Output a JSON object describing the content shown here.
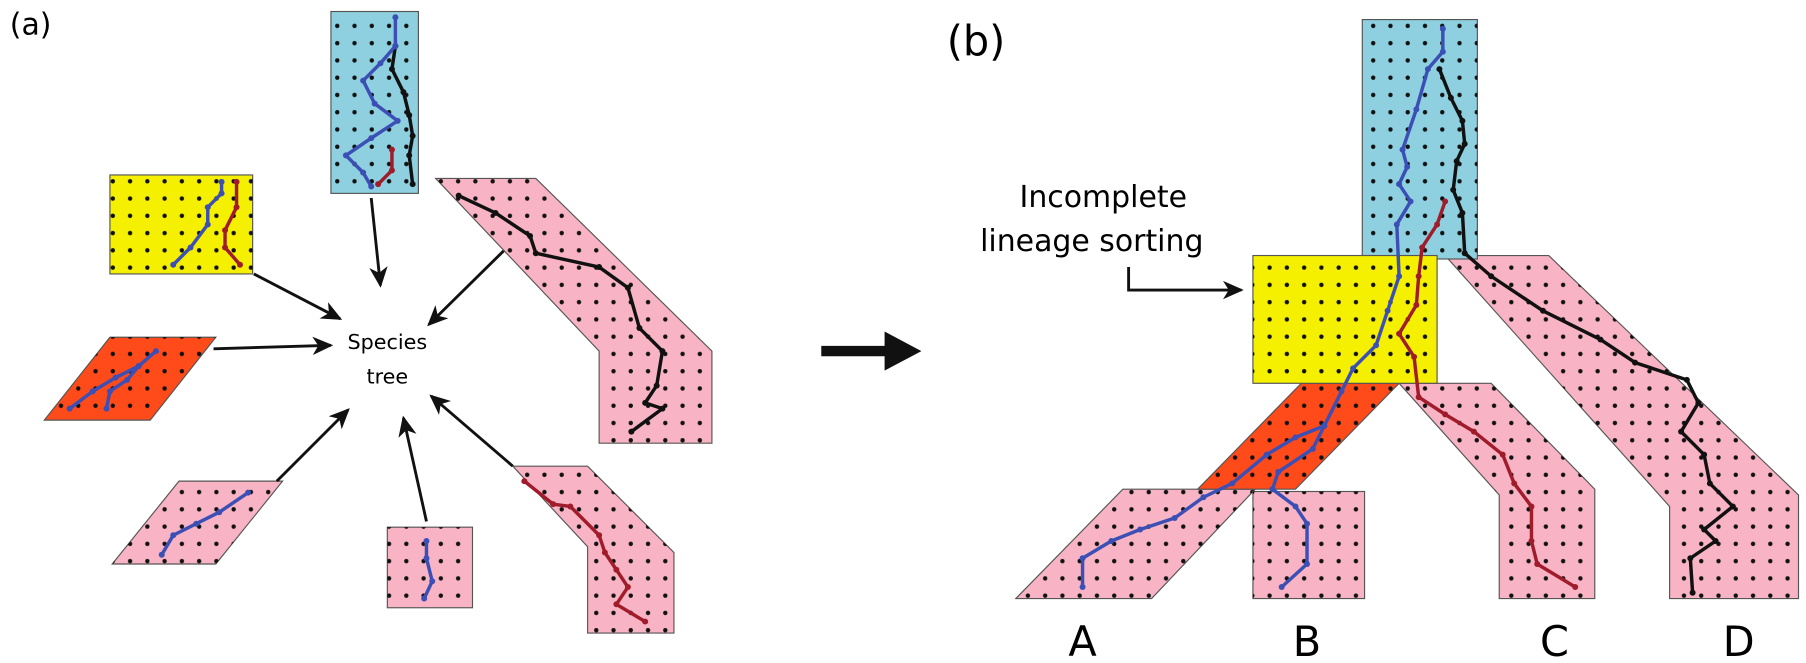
{
  "panel_a": {
    "label": "(a)",
    "center_label_lines": [
      "Species",
      "tree"
    ]
  },
  "panel_b": {
    "label": "(b)",
    "annotation_lines": [
      "Incomplete",
      "lineage sorting"
    ],
    "tips": [
      "A",
      "B",
      "C",
      "D"
    ]
  }
}
